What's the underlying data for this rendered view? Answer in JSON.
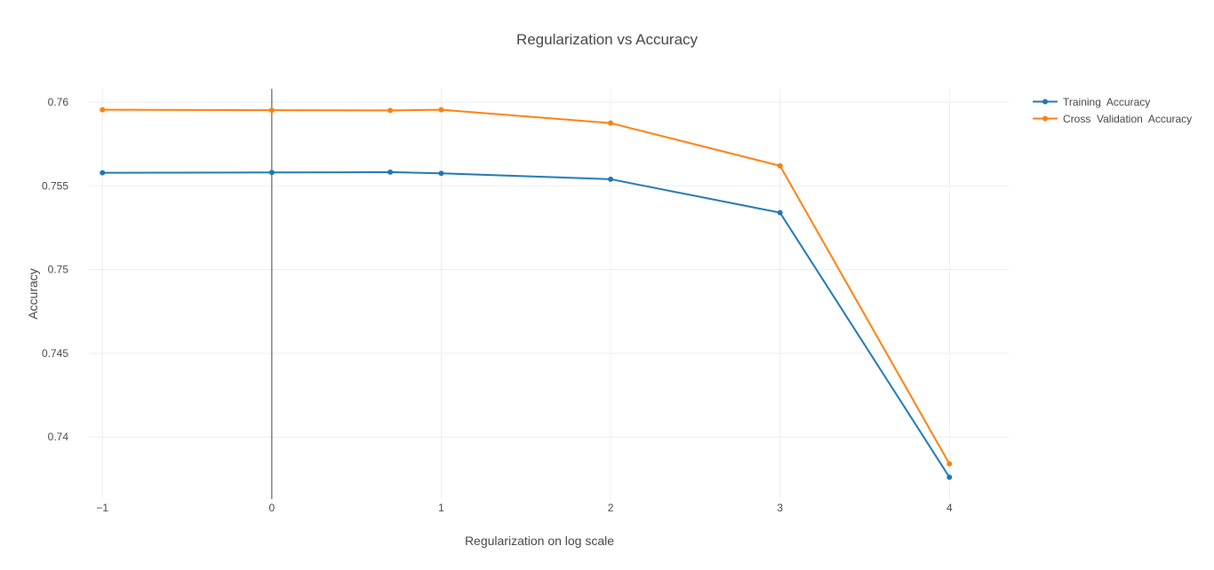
{
  "chart_data": {
    "type": "line",
    "title": "Regularization vs Accuracy",
    "xlabel": "Regularization on log scale",
    "ylabel": "Accuracy",
    "xlim": [
      -1.08,
      4.35
    ],
    "ylim": [
      0.7363,
      0.7608
    ],
    "x_ticks": [
      -1,
      0,
      1,
      2,
      3,
      4
    ],
    "x_tick_labels": [
      "−1",
      "0",
      "1",
      "2",
      "3",
      "4"
    ],
    "y_ticks": [
      0.74,
      0.745,
      0.75,
      0.755,
      0.76
    ],
    "y_tick_labels": [
      "0.74",
      "0.745",
      "0.75",
      "0.755",
      "0.76"
    ],
    "grid": true,
    "zero_line_x": 0,
    "legend_position": "top-right",
    "x": [
      -1,
      0,
      0.699,
      1,
      2,
      3,
      4
    ],
    "series": [
      {
        "name": "Training  Accuracy",
        "color": "#1f77b4",
        "values": [
          0.75578,
          0.7558,
          0.75582,
          0.75575,
          0.7554,
          0.7534,
          0.7376
        ]
      },
      {
        "name": "Cross  Validation  Accuracy",
        "color": "#ff7f0e",
        "values": [
          0.75955,
          0.75952,
          0.75951,
          0.75955,
          0.75875,
          0.7562,
          0.7384
        ]
      }
    ]
  }
}
